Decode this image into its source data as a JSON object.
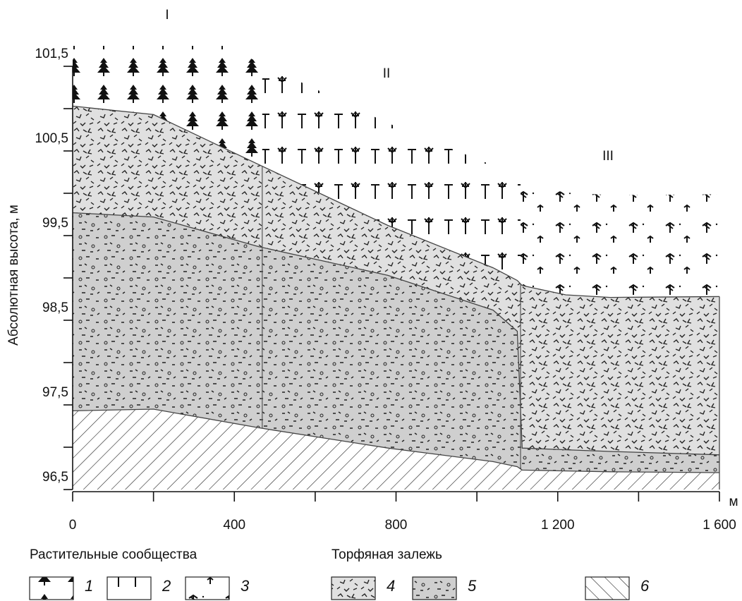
{
  "chart_data": {
    "type": "cross-section",
    "y_label": "Абсолютная высота, м",
    "x_unit": "м",
    "xlim": [
      0,
      1600
    ],
    "ylim": [
      96.5,
      101.5
    ],
    "xticks": [
      0,
      400,
      800,
      {
        "value": 1200,
        "label": "1 200"
      },
      {
        "value": 1600,
        "label": "1 600"
      }
    ],
    "x_minor_ticks": [
      200,
      600,
      1000,
      1400
    ],
    "yticks": [
      {
        "value": 96.5,
        "label": "96,5"
      },
      {
        "value": 97.5,
        "label": "97,5"
      },
      {
        "value": 98.5,
        "label": "98,5"
      },
      {
        "value": 99.5,
        "label": "99,5"
      },
      {
        "value": 100.5,
        "label": "100,5"
      },
      {
        "value": 101.5,
        "label": "101,5"
      }
    ],
    "y_minor_ticks": [
      97,
      98,
      99,
      100,
      101
    ],
    "zones": [
      {
        "label": "I",
        "legend": "1"
      },
      {
        "label": "II",
        "legend": "2"
      },
      {
        "label": "III",
        "legend": "3"
      }
    ],
    "zone_bounds": [
      469,
      1108
    ],
    "x": [
      0,
      200,
      460,
      780,
      1040,
      1100,
      1112,
      1220,
      1330,
      1600
    ],
    "layers": [
      {
        "legend": "4",
        "top": [
          101.03,
          100.93,
          100.34,
          99.62,
          99.12,
          98.97,
          98.91,
          98.8,
          98.77,
          98.78
        ]
      },
      {
        "legend": "5",
        "top": [
          99.77,
          99.72,
          99.37,
          99.03,
          98.62,
          98.37,
          96.99,
          96.97,
          96.95,
          96.91
        ]
      },
      {
        "legend": "6",
        "top": [
          97.43,
          97.45,
          97.23,
          96.99,
          96.83,
          96.77,
          96.73,
          96.72,
          96.71,
          96.7
        ]
      }
    ],
    "legend_titles": [
      "Растительные сообщества",
      "Торфяная залежь"
    ]
  }
}
